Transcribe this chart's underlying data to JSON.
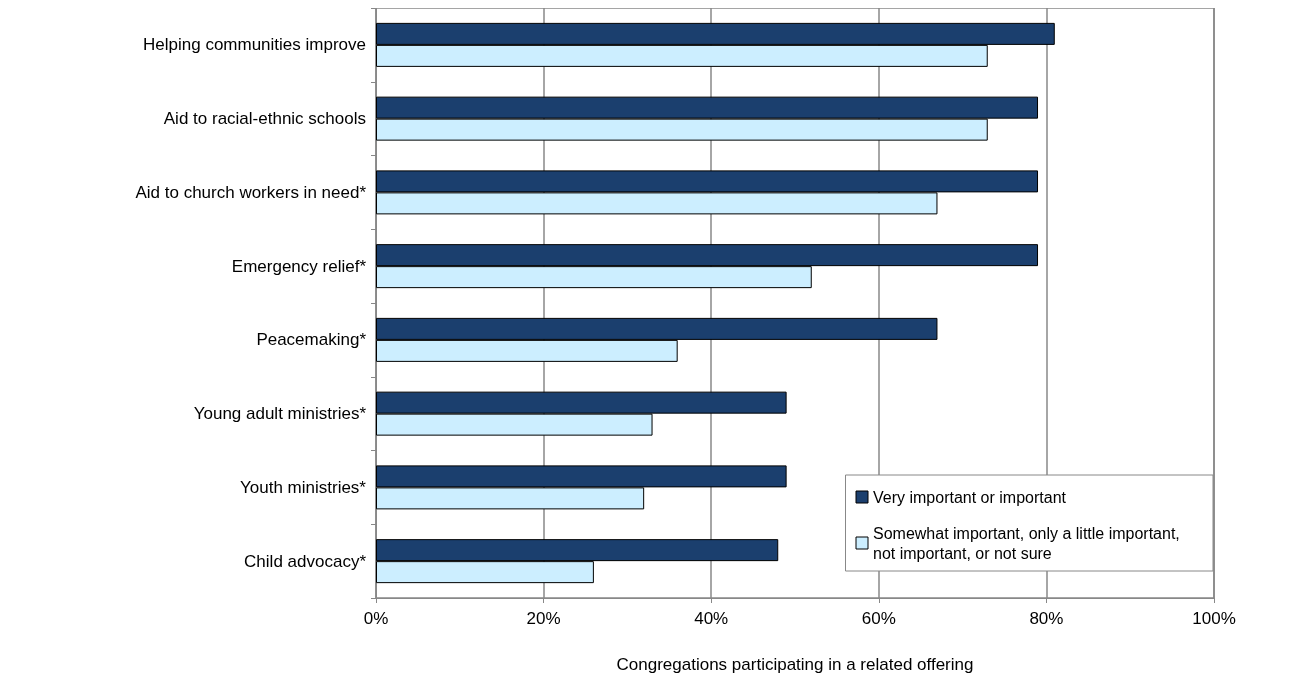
{
  "chart_data": {
    "type": "bar",
    "orientation": "horizontal",
    "xlabel": "Congregations participating in a related offering",
    "categories": [
      "Helping communities improve",
      "Aid to racial-ethnic schools",
      "Aid to church workers in need*",
      "Emergency relief*",
      "Peacemaking*",
      "Young adult ministries*",
      "Youth ministries*",
      "Child advocacy*"
    ],
    "series": [
      {
        "name": "Very important or important",
        "color": "#1b3f6e",
        "values": [
          81,
          79,
          79,
          79,
          67,
          49,
          49,
          48
        ]
      },
      {
        "name": "Somewhat important, only a little important, not important, or not sure",
        "color": "#cceeff",
        "values": [
          73,
          73,
          67,
          52,
          36,
          33,
          32,
          26
        ]
      }
    ],
    "xlim": [
      0,
      100
    ],
    "xticks": [
      {
        "value": 0,
        "label": "0%"
      },
      {
        "value": 20,
        "label": "20%"
      },
      {
        "value": 40,
        "label": "40%"
      },
      {
        "value": 60,
        "label": "60%"
      },
      {
        "value": 80,
        "label": "80%"
      },
      {
        "value": 100,
        "label": "100%"
      }
    ],
    "grid": "x",
    "legend": "bottom right"
  }
}
